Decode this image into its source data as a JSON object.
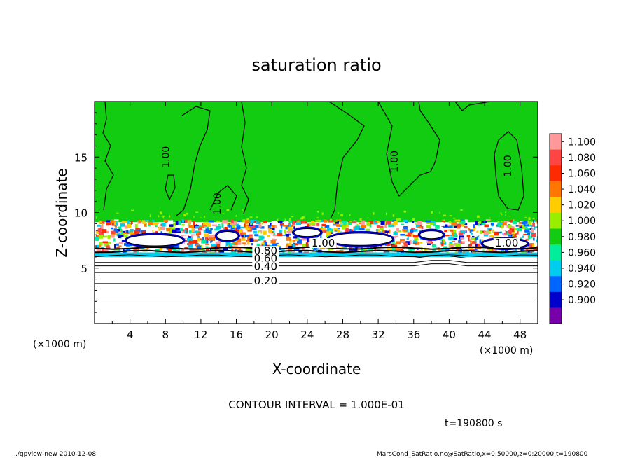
{
  "chart_data": {
    "type": "heatmap",
    "title": "saturation ratio",
    "xlabel": "X-coordinate",
    "ylabel": "Z-coordinate",
    "x_unit": "(×1000 m)",
    "y_unit": "(×1000 m)",
    "xlim": [
      0,
      50
    ],
    "ylim": [
      0,
      20
    ],
    "x_ticks": [
      4,
      8,
      12,
      16,
      20,
      24,
      28,
      32,
      36,
      40,
      44,
      48
    ],
    "y_ticks": [
      5,
      10,
      15
    ],
    "colorbar": {
      "levels": [
        "1.100",
        "1.080",
        "1.060",
        "1.040",
        "1.020",
        "1.000",
        "0.980",
        "0.960",
        "0.940",
        "0.920",
        "0.900"
      ],
      "colors": [
        "#ff9999",
        "#ff4444",
        "#ff2a00",
        "#ff7700",
        "#ffcc00",
        "#99ee00",
        "#11cc11",
        "#00ee99",
        "#00ccee",
        "#0066ff",
        "#0000cc",
        "#7700aa"
      ]
    },
    "contour_labels": [
      {
        "text": "1.00",
        "x": 8.4,
        "z": 15
      },
      {
        "text": "1.00",
        "x": 14.2,
        "z": 10.8
      },
      {
        "text": "1.00",
        "x": 34.2,
        "z": 14.6
      },
      {
        "text": "1.00",
        "x": 47.0,
        "z": 14.2
      },
      {
        "text": "1.00",
        "x": 25.8,
        "z": 7.0
      },
      {
        "text": "1.00",
        "x": 46.5,
        "z": 7.0
      },
      {
        "text": "0.80",
        "x": 19.3,
        "z": 6.3
      },
      {
        "text": "0.60",
        "x": 19.3,
        "z": 5.6
      },
      {
        "text": "0.40",
        "x": 19.3,
        "z": 4.9
      },
      {
        "text": "0.20",
        "x": 19.3,
        "z": 3.6
      }
    ],
    "lower_contours_z": [
      6.8,
      6.5,
      6.1,
      5.9,
      5.5,
      5.2,
      4.6,
      3.6,
      2.3
    ]
  },
  "footer": {
    "contour_interval": "CONTOUR INTERVAL = 1.000E-01",
    "time": "t=190800  s",
    "left_note": "./gpview-new   2010-12-08",
    "right_note": "MarsCond_SatRatio.nc@SatRatio,x=0:50000,z=0:20000,t=190800"
  }
}
